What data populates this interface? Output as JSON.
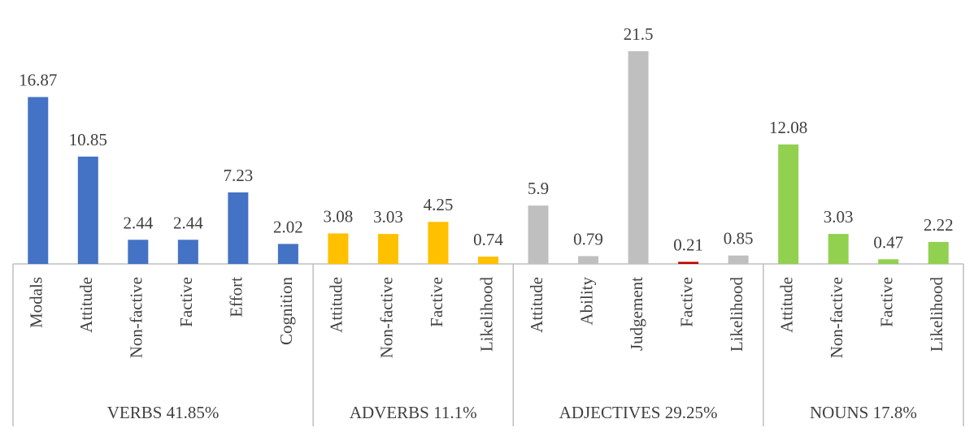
{
  "chart_data": {
    "type": "bar",
    "ylim": [
      0,
      22
    ],
    "groups": [
      {
        "name": "VERBS 41.85%",
        "categories": [
          "Modals",
          "Attitude",
          "Non-factive",
          "Factive",
          "Effort",
          "Cognition"
        ],
        "values": [
          16.87,
          10.85,
          2.44,
          2.44,
          7.23,
          2.02
        ],
        "colors": [
          "#4472c4",
          "#4472c4",
          "#4472c4",
          "#4472c4",
          "#4472c4",
          "#4472c4"
        ]
      },
      {
        "name": "ADVERBS 11.1%",
        "categories": [
          "Attitude",
          "Non-factive",
          "Factive",
          "Likelihood"
        ],
        "values": [
          3.08,
          3.03,
          4.25,
          0.74
        ],
        "colors": [
          "#ffc000",
          "#ffc000",
          "#ffc000",
          "#ffc000"
        ]
      },
      {
        "name": "ADJECTIVES 29.25%",
        "categories": [
          "Attitude",
          "Ability",
          "Judgement",
          "Factive",
          "Likelihood"
        ],
        "values": [
          5.9,
          0.79,
          21.5,
          0.21,
          0.85
        ],
        "colors": [
          "#bfbfbf",
          "#bfbfbf",
          "#bfbfbf",
          "#c00000",
          "#bfbfbf"
        ]
      },
      {
        "name": "NOUNS 17.8%",
        "categories": [
          "Attitude",
          "Non-factive",
          "Factive",
          "Likelihood"
        ],
        "values": [
          12.08,
          3.03,
          0.47,
          2.22
        ],
        "colors": [
          "#92d050",
          "#92d050",
          "#92d050",
          "#92d050"
        ]
      }
    ]
  }
}
